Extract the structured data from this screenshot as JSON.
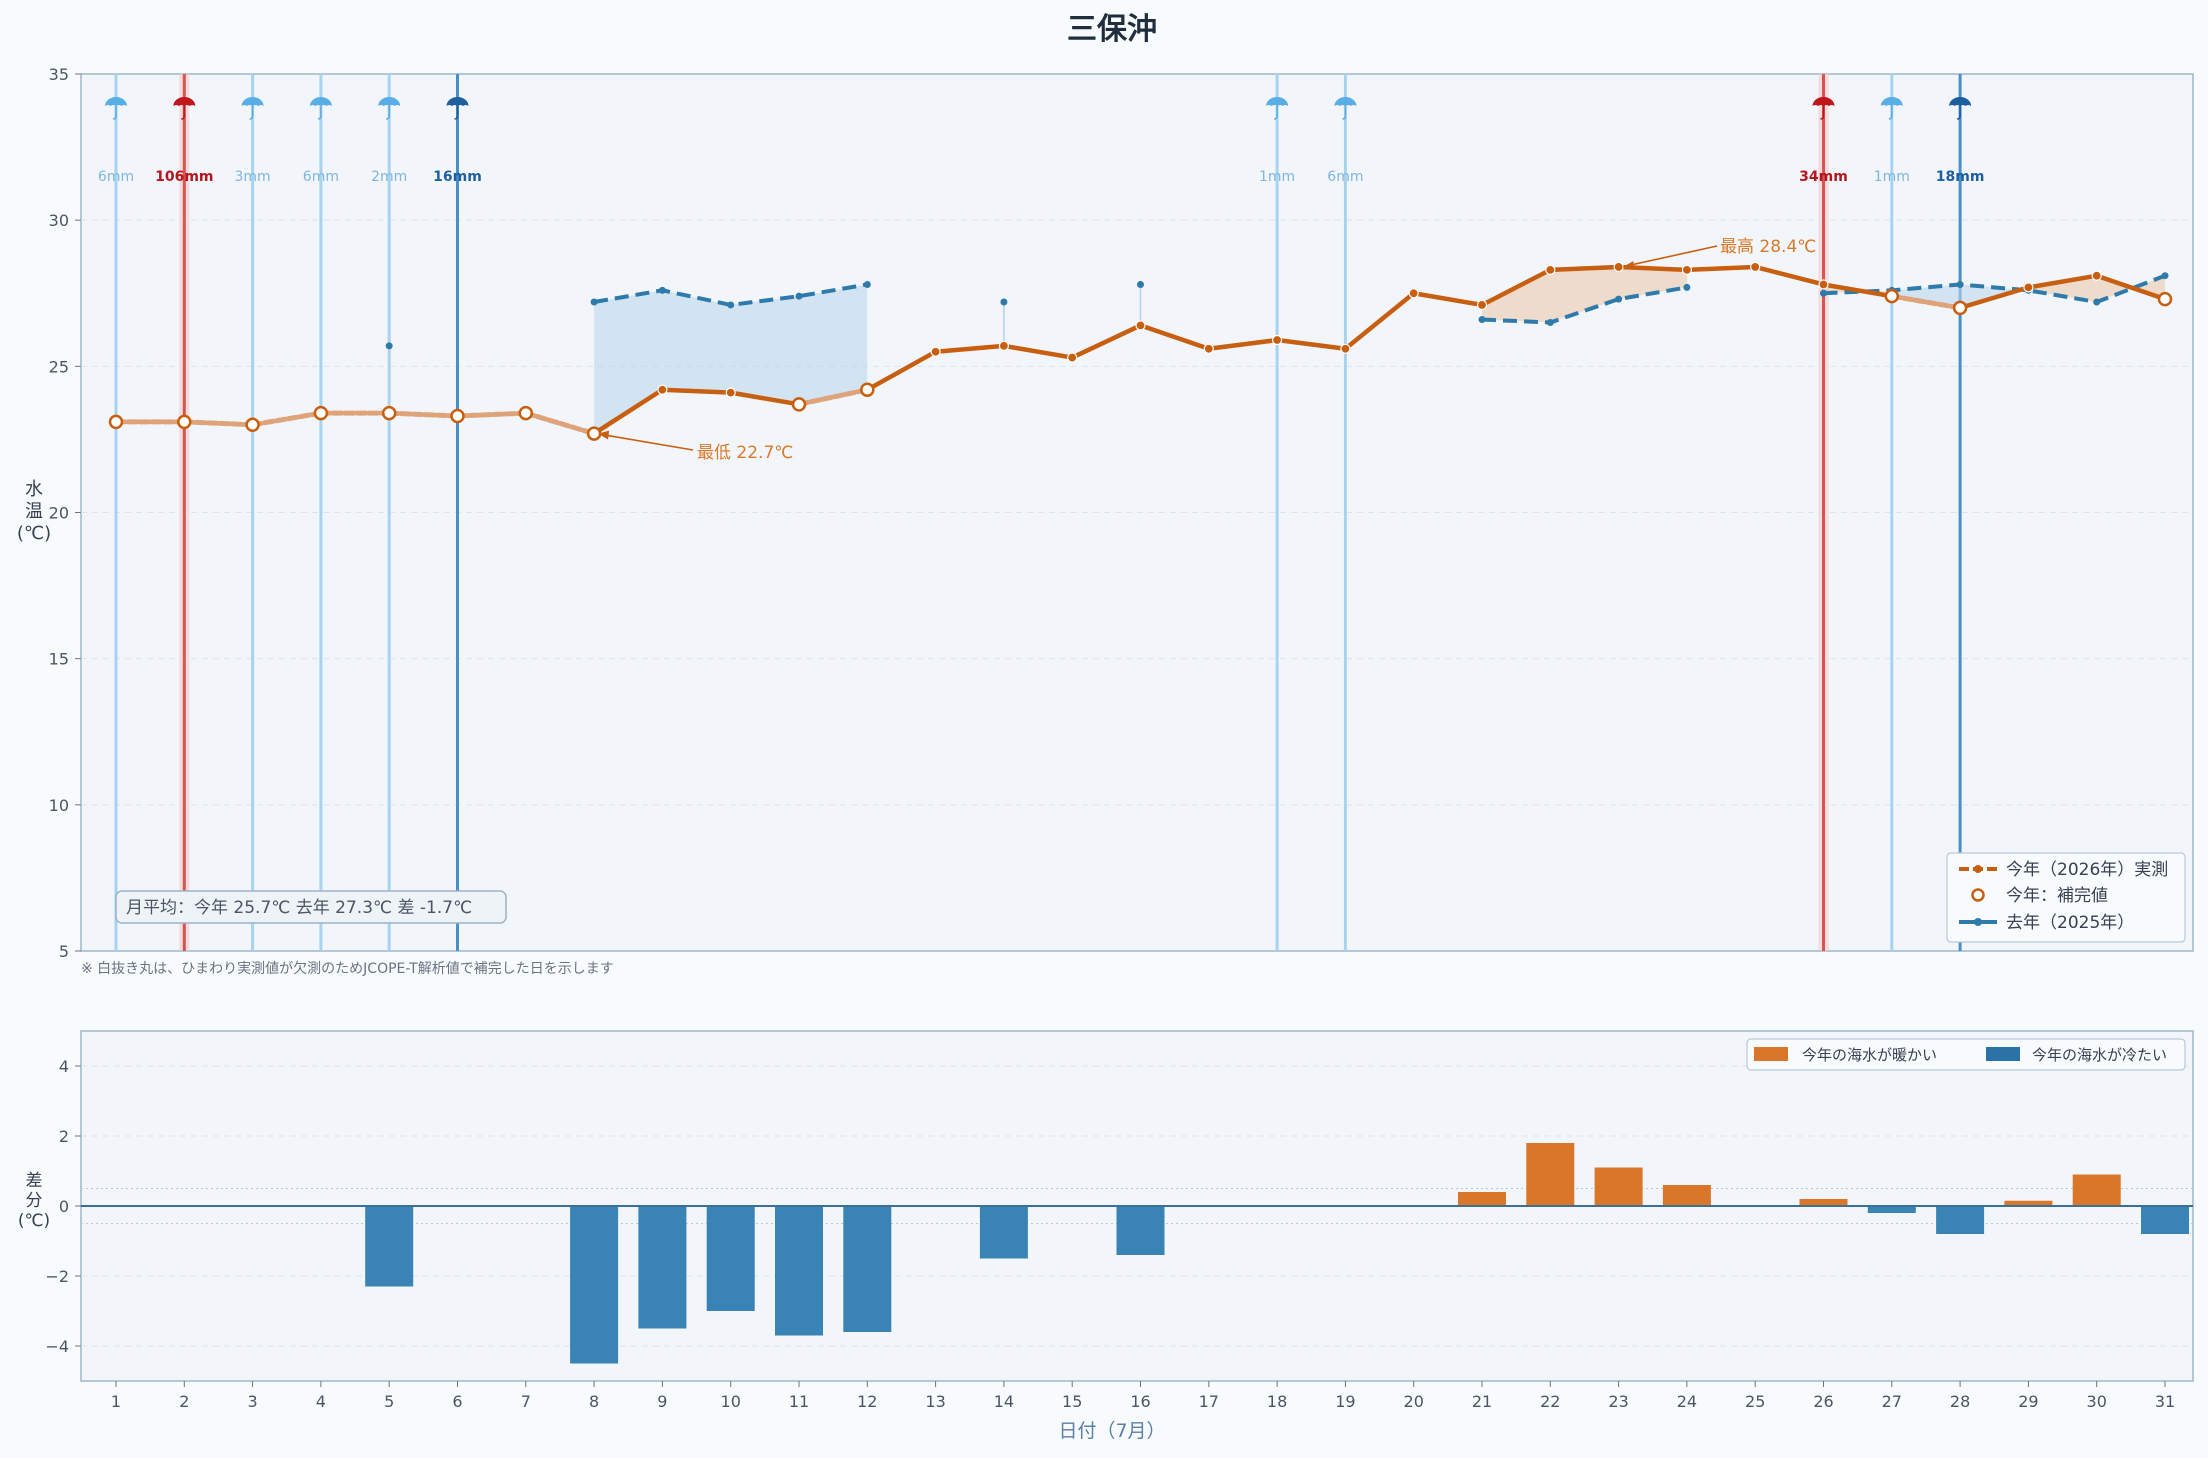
{
  "chart_data": [
    {
      "type": "line",
      "title": "三保沖",
      "ylabel": "水温(℃)",
      "ylim": [
        5,
        35
      ],
      "yticks": [
        5,
        10,
        15,
        20,
        25,
        30,
        35
      ],
      "x": [
        1,
        2,
        3,
        4,
        5,
        6,
        7,
        8,
        9,
        10,
        11,
        12,
        13,
        14,
        15,
        16,
        17,
        18,
        19,
        20,
        21,
        22,
        23,
        24,
        25,
        26,
        27,
        28,
        29,
        30,
        31
      ],
      "series": [
        {
          "name": "今年（2026年）実測",
          "color": "#c85f10",
          "values": [
            23.1,
            23.1,
            23.0,
            23.4,
            23.4,
            23.3,
            23.4,
            22.7,
            24.2,
            24.1,
            23.7,
            24.2,
            25.5,
            25.7,
            25.3,
            26.4,
            25.6,
            25.9,
            25.6,
            27.5,
            27.1,
            28.3,
            28.4,
            28.3,
            28.4,
            27.8,
            27.4,
            27.0,
            27.7,
            28.1,
            27.3
          ],
          "interpolated_days": [
            1,
            2,
            3,
            4,
            5,
            6,
            7,
            8,
            11,
            12,
            27,
            28,
            31
          ]
        },
        {
          "name": "今年：補完値",
          "color": "#c85f10"
        },
        {
          "name": "去年（2025年）",
          "color": "#2e7aab",
          "values": [
            null,
            null,
            null,
            null,
            25.7,
            null,
            null,
            27.2,
            27.6,
            27.1,
            27.4,
            27.8,
            null,
            27.2,
            null,
            27.8,
            null,
            null,
            null,
            null,
            26.6,
            26.5,
            27.3,
            27.7,
            null,
            27.5,
            27.6,
            27.8,
            27.6,
            27.2,
            28.1
          ]
        }
      ],
      "rain": [
        {
          "day": 1,
          "label": "6mm",
          "level": "light"
        },
        {
          "day": 2,
          "label": "106mm",
          "level": "heavy"
        },
        {
          "day": 3,
          "label": "3mm",
          "level": "light"
        },
        {
          "day": 4,
          "label": "6mm",
          "level": "light"
        },
        {
          "day": 5,
          "label": "2mm",
          "level": "light"
        },
        {
          "day": 6,
          "label": "16mm",
          "level": "moderate"
        },
        {
          "day": 18,
          "label": "1mm",
          "level": "light"
        },
        {
          "day": 19,
          "label": "6mm",
          "level": "light"
        },
        {
          "day": 26,
          "label": "34mm",
          "level": "heavy"
        },
        {
          "day": 27,
          "label": "1mm",
          "level": "light"
        },
        {
          "day": 28,
          "label": "18mm",
          "level": "moderate"
        }
      ],
      "annotations": [
        {
          "text": "最高 28.4℃",
          "day": 23,
          "value": 28.4
        },
        {
          "text": "最低 22.7℃",
          "day": 8,
          "value": 22.7
        }
      ],
      "monthly_avg_text": "月平均：今年 25.7℃  去年 27.3℃  差 -1.7℃",
      "note": "※ 白抜き丸は、ひまわり実測値が欠測のためJCOPE-T解析値で補完した日を示します",
      "legend_position": "bottom-right",
      "grid": true
    },
    {
      "type": "bar",
      "ylabel": "差分(℃)",
      "xlabel": "日付（7月）",
      "ylim": [
        -5,
        5
      ],
      "yticks": [
        -4,
        -2,
        0,
        2,
        4
      ],
      "x": [
        1,
        2,
        3,
        4,
        5,
        6,
        7,
        8,
        9,
        10,
        11,
        12,
        13,
        14,
        15,
        16,
        17,
        18,
        19,
        20,
        21,
        22,
        23,
        24,
        25,
        26,
        27,
        28,
        29,
        30,
        31
      ],
      "values": [
        null,
        null,
        null,
        null,
        -2.3,
        null,
        null,
        -4.5,
        -3.5,
        -3.0,
        -3.7,
        -3.6,
        null,
        -1.5,
        null,
        -1.4,
        null,
        null,
        null,
        null,
        0.4,
        1.8,
        1.1,
        0.6,
        null,
        0.2,
        -0.2,
        -0.8,
        0.15,
        0.9,
        -0.8
      ],
      "series": [
        {
          "name": "今年の海水が暖かい",
          "color": "#d9762a"
        },
        {
          "name": "今年の海水が冷たい",
          "color": "#3a84b5"
        }
      ],
      "legend_position": "top-right",
      "grid": true
    }
  ]
}
